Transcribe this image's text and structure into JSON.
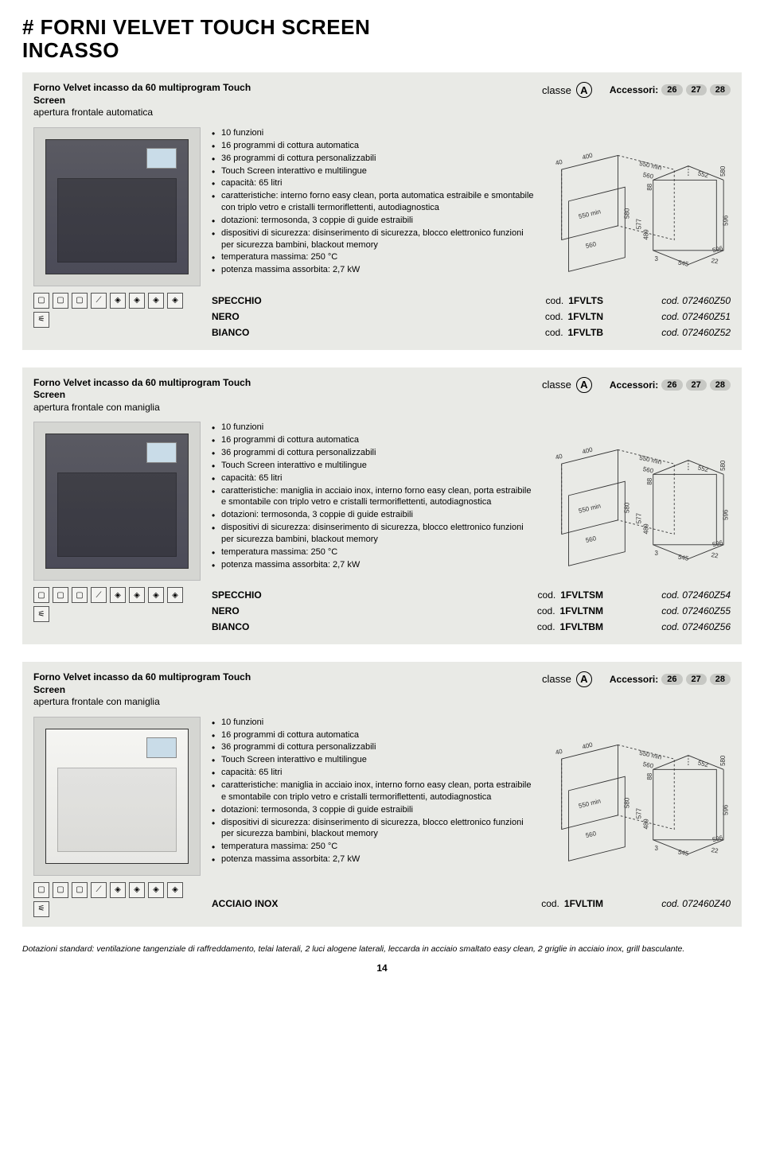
{
  "page_title_line1": "# FORNI VELVET TOUCH SCREEN",
  "page_title_line2": "INCASSO",
  "classe_label": "classe",
  "classe_letter": "A",
  "accessori_label": "Accessori:",
  "accessori_values": [
    "26",
    "27",
    "28"
  ],
  "cod_label": "cod.",
  "cod_italic_label": "cod.",
  "page_number": "14",
  "footnote": "Dotazioni standard: ventilazione tangenziale di raffreddamento, telai laterali, 2 luci alogene laterali, leccarda in acciaio smaltato easy clean, 2 griglie in acciaio inox, grill basculante.",
  "dim_labels": {
    "a": "40",
    "b": "400",
    "c": "550 min",
    "d": "580",
    "e": "560",
    "f": "580",
    "g": "88",
    "h": "552",
    "i": "550 min",
    "j": "560",
    "k": "577",
    "l": "489",
    "m": "596",
    "n": "3",
    "o": "545",
    "p": "22",
    "q": "596"
  },
  "products": [
    {
      "title_bold": "Forno Velvet incasso da 60 multiprogram Touch Screen",
      "title_sub": "apertura frontale automatica",
      "photo_variant": "dark",
      "bullets": [
        "10 funzioni",
        "16 programmi di cottura automatica",
        "36 programmi di cottura personalizzabili",
        "Touch Screen interattivo e multilingue",
        "capacità: 65 litri",
        "caratteristiche: interno forno easy clean, porta automatica estraibile e smontabile con triplo vetro e cristalli termoriflettenti, autodiagnostica",
        "dotazioni: termosonda, 3 coppie di guide estraibili",
        "dispositivi di sicurezza: disinserimento di sicurezza, blocco elettronico funzioni per sicurezza bambini, blackout memory",
        "temperatura massima: 250 °C",
        "potenza massima assorbita: 2,7 kW"
      ],
      "codes": [
        {
          "variant": "SPECCHIO",
          "code1": "1FVLTS",
          "code2": "072460Z50"
        },
        {
          "variant": "NERO",
          "code1": "1FVLTN",
          "code2": "072460Z51"
        },
        {
          "variant": "BIANCO",
          "code1": "1FVLTB",
          "code2": "072460Z52"
        }
      ]
    },
    {
      "title_bold": "Forno Velvet incasso da 60 multiprogram Touch Screen",
      "title_sub": "apertura frontale con maniglia",
      "photo_variant": "dark",
      "bullets": [
        "10 funzioni",
        "16 programmi di cottura automatica",
        "36 programmi di cottura personalizzabili",
        "Touch Screen interattivo e multilingue",
        "capacità: 65 litri",
        "caratteristiche: maniglia in acciaio inox, interno forno easy clean, porta estraibile e smontabile con triplo vetro e cristalli termoriflettenti, autodiagnostica",
        "dotazioni: termosonda, 3 coppie di guide estraibili",
        "dispositivi di sicurezza: disinserimento di sicurezza, blocco elettronico funzioni per sicurezza bambini, blackout memory",
        "temperatura massima: 250 °C",
        "potenza massima assorbita: 2,7 kW"
      ],
      "codes": [
        {
          "variant": "SPECCHIO",
          "code1": "1FVLTSM",
          "code2": "072460Z54"
        },
        {
          "variant": "NERO",
          "code1": "1FVLTNM",
          "code2": "072460Z55"
        },
        {
          "variant": "BIANCO",
          "code1": "1FVLTBM",
          "code2": "072460Z56"
        }
      ]
    },
    {
      "title_bold": "Forno Velvet incasso da 60 multiprogram Touch Screen",
      "title_sub": "apertura frontale con maniglia",
      "photo_variant": "white",
      "bullets": [
        "10 funzioni",
        "16 programmi di cottura automatica",
        "36 programmi di cottura personalizzabili",
        "Touch Screen interattivo e multilingue",
        "capacità: 65 litri",
        "caratteristiche: maniglia in acciaio inox, interno forno easy clean, porta estraibile e smontabile con triplo vetro e cristalli termoriflettenti, autodiagnostica",
        "dotazioni: termosonda, 3 coppie di guide estraibili",
        "dispositivi di sicurezza: disinserimento di sicurezza, blocco elettronico funzioni per sicurezza bambini, blackout memory",
        "temperatura massima: 250 °C",
        "potenza massima assorbita: 2,7 kW"
      ],
      "codes": [
        {
          "variant": "ACCIAIO INOX",
          "code1": "1FVLTIM",
          "code2": "072460Z40"
        }
      ],
      "extra_top_space": true
    }
  ]
}
